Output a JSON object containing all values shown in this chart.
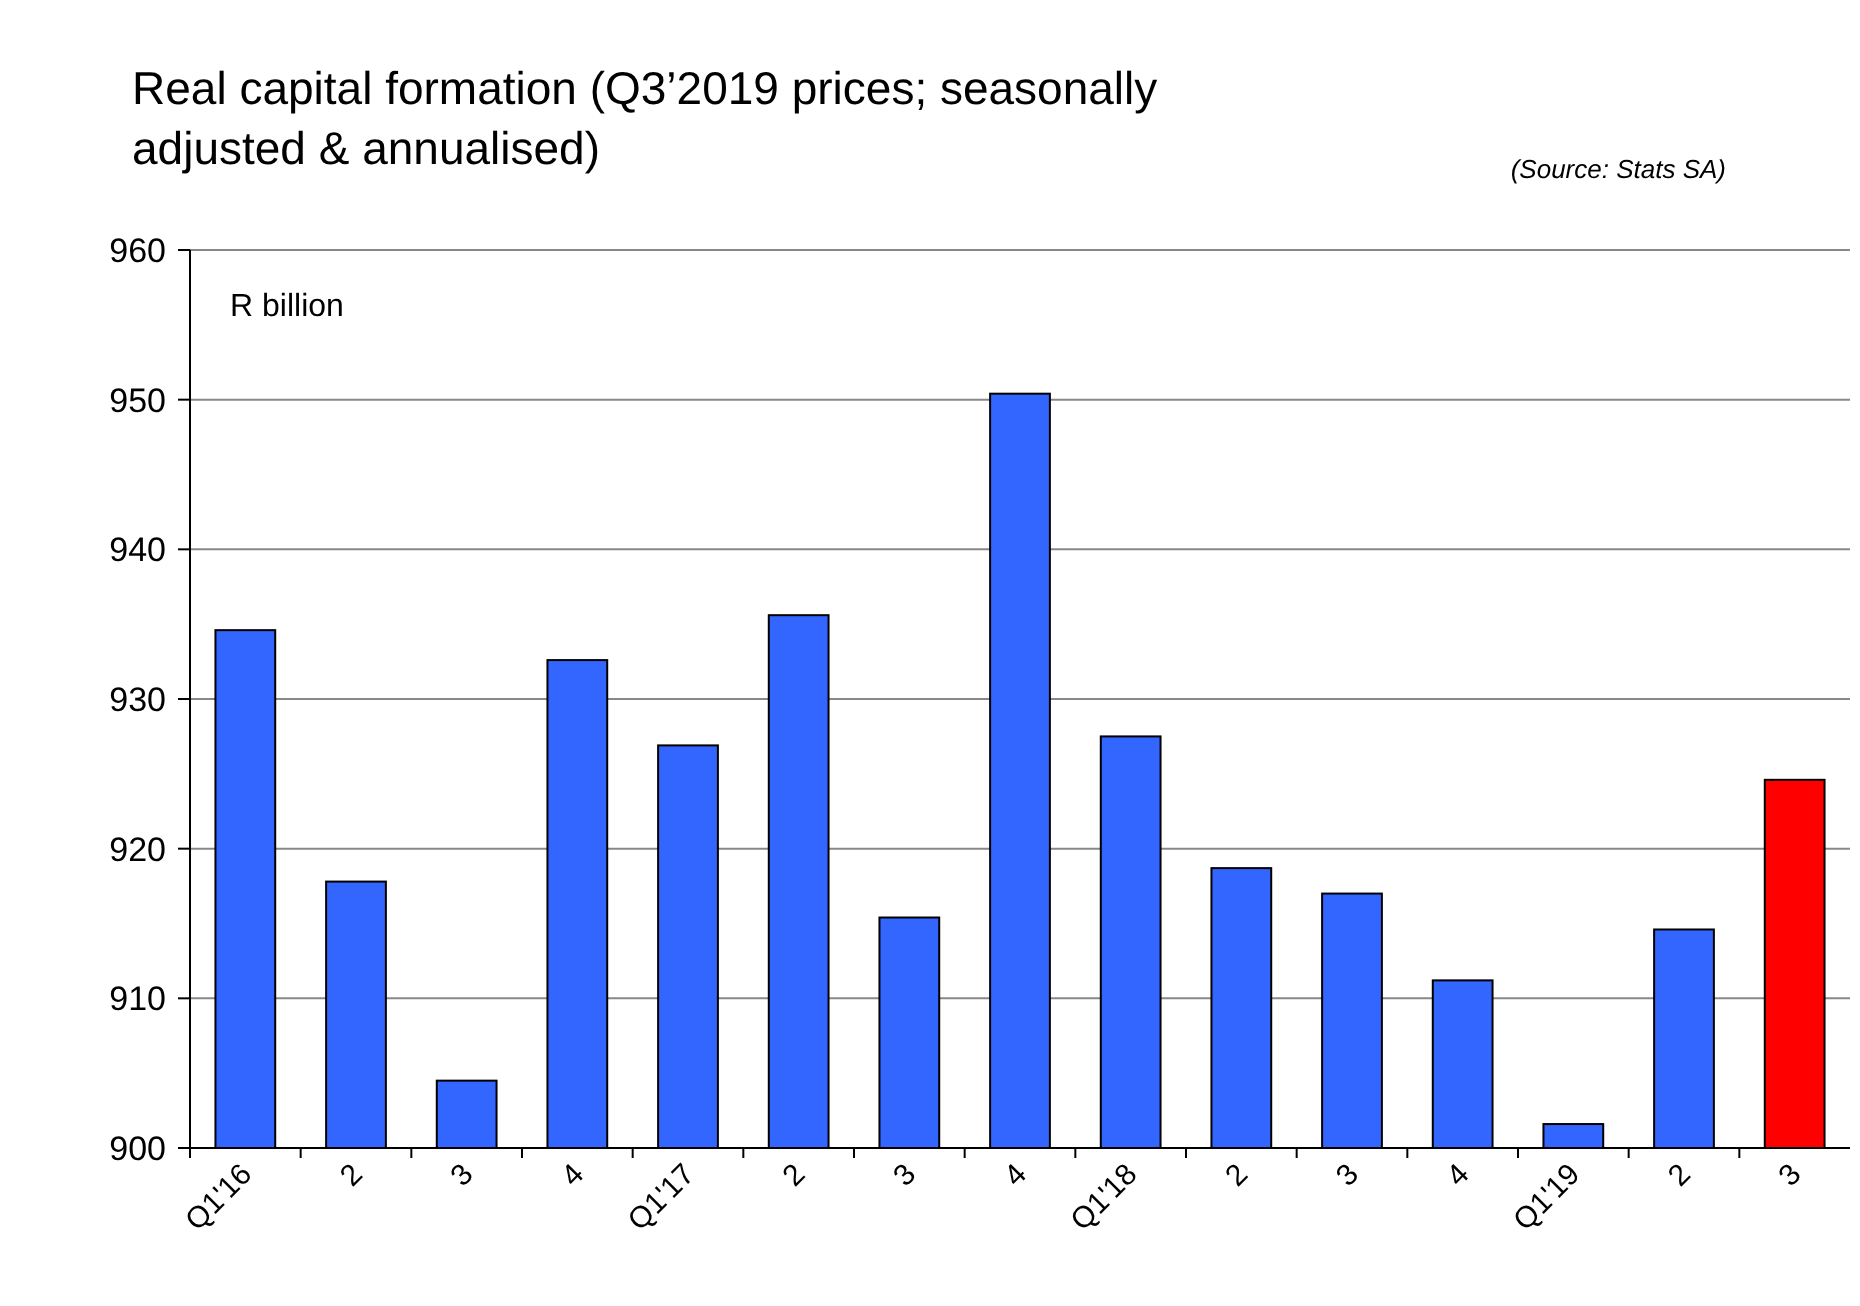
{
  "chart_data": {
    "type": "bar",
    "title": "Real capital formation (Q3’2019 prices; seasonally adjusted & annualised)",
    "annotations": [
      "(Source: Stats SA)",
      "R billion"
    ],
    "categories": [
      "Q1'16",
      "2",
      "3",
      "4",
      "Q1'17",
      "2",
      "3",
      "4",
      "Q1'18",
      "2",
      "3",
      "4",
      "Q1'19",
      "2",
      "3"
    ],
    "values": [
      934.6,
      917.8,
      904.5,
      932.6,
      926.9,
      935.6,
      915.4,
      950.4,
      927.5,
      918.7,
      917.0,
      911.2,
      901.6,
      914.6,
      924.6
    ],
    "colors": [
      "#3366ff",
      "#3366ff",
      "#3366ff",
      "#3366ff",
      "#3366ff",
      "#3366ff",
      "#3366ff",
      "#3366ff",
      "#3366ff",
      "#3366ff",
      "#3366ff",
      "#3366ff",
      "#3366ff",
      "#3366ff",
      "#ff0000"
    ],
    "ylim": [
      900,
      960
    ],
    "yticks": [
      900,
      910,
      920,
      930,
      940,
      950,
      960
    ],
    "grid": "y"
  }
}
